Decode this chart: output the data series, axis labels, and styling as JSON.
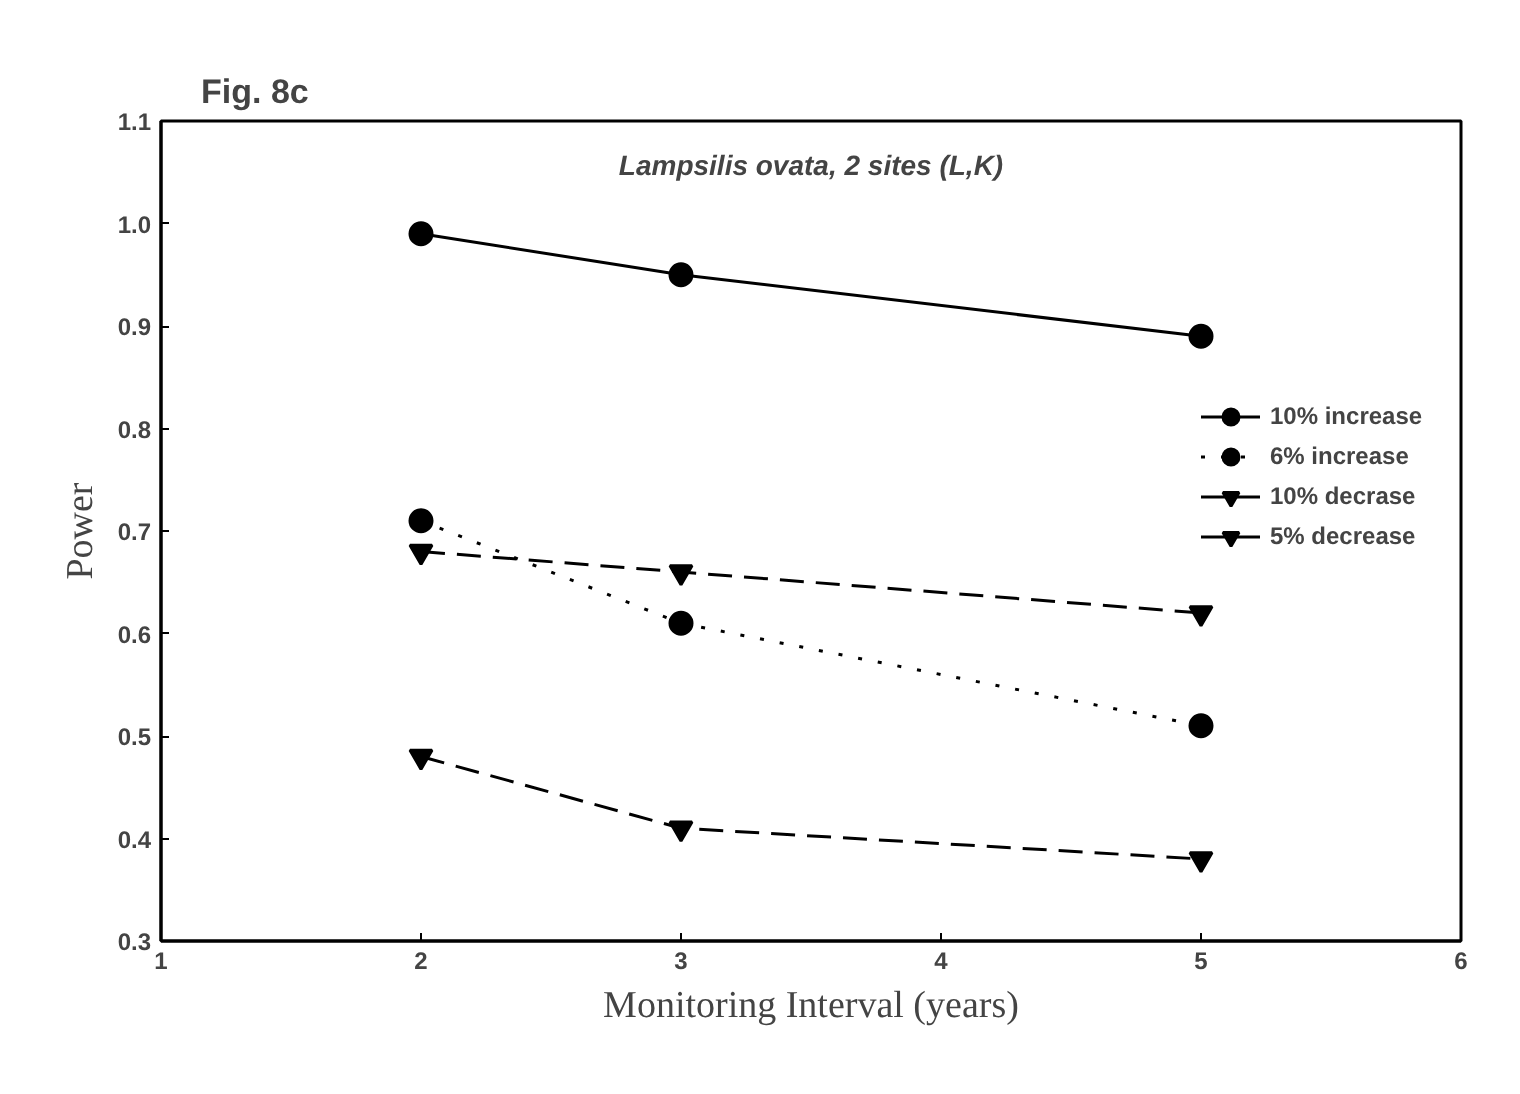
{
  "chart_data": {
    "type": "line",
    "title": "Fig. 8c",
    "xlabel": "Monitoring Interval (years)",
    "ylabel": "Power",
    "annotations": [
      "Lampsilis ovata, 2 sites (L,K)"
    ],
    "x": [
      2,
      3,
      5
    ],
    "xlim": [
      1,
      6
    ],
    "xticks": [
      1,
      2,
      3,
      4,
      5,
      6
    ],
    "ylim": [
      0.3,
      1.1
    ],
    "yticks": [
      {
        "value": 0.3,
        "label": "0.3"
      },
      {
        "value": 0.4,
        "label": "0.4"
      },
      {
        "value": 0.5,
        "label": "0.5"
      },
      {
        "value": 0.6,
        "label": "0.6"
      },
      {
        "value": 0.7,
        "label": "0.7"
      },
      {
        "value": 0.8,
        "label": "0.8"
      },
      {
        "value": 0.9,
        "label": "0.9"
      },
      {
        "value": 1.0,
        "label": "1.0"
      },
      {
        "value": 1.1,
        "label": "1.1"
      }
    ],
    "grid": false,
    "legend": "right",
    "series": [
      {
        "name": "10% increase",
        "color": "#000000",
        "values": [
          0.99,
          0.95,
          0.89
        ],
        "marker": "circle",
        "line_style": "solid"
      },
      {
        "name": "6% increase",
        "color": "#000000",
        "values": [
          0.71,
          0.61,
          0.51
        ],
        "marker": "circle",
        "line_style": "dotted"
      },
      {
        "name": "10% decrase",
        "color": "#000000",
        "values": [
          0.68,
          0.66,
          0.62
        ],
        "marker": "triangle",
        "line_style": "dashed"
      },
      {
        "name": "5% decrease",
        "color": "#000000",
        "values": [
          0.48,
          0.41,
          0.38
        ],
        "marker": "triangle",
        "line_style": "dashed"
      }
    ]
  }
}
